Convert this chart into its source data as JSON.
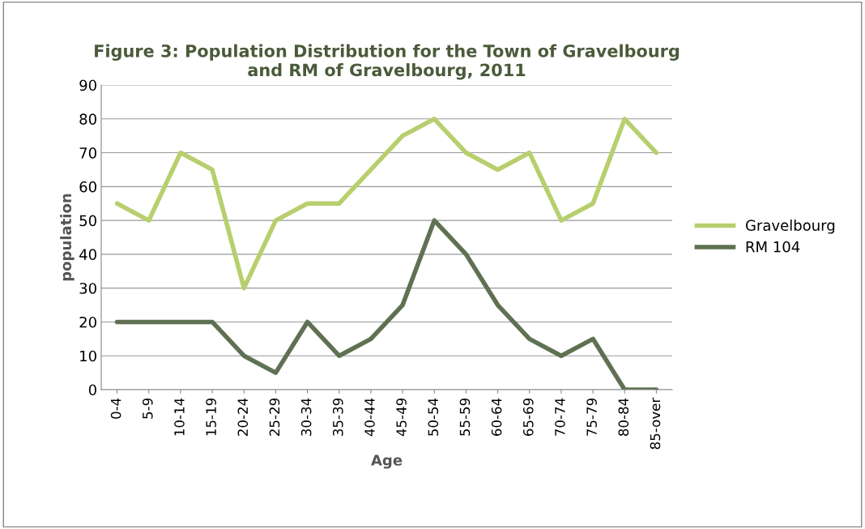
{
  "chart_data": {
    "type": "line",
    "title": "Figure 3: Population Distribution for the Town of Gravelbourg\nand RM of Gravelbourg, 2011",
    "xlabel": "Age",
    "ylabel": "population",
    "categories": [
      "0-4",
      "5-9",
      "10-14",
      "15-19",
      "20-24",
      "25-29",
      "30-34",
      "35-39",
      "40-44",
      "45-49",
      "50-54",
      "55-59",
      "60-64",
      "65-69",
      "70-74",
      "75-79",
      "80-84",
      "85-over"
    ],
    "series": [
      {
        "name": "Gravelbourg",
        "color": "#b8cf6e",
        "values": [
          55,
          50,
          70,
          65,
          30,
          50,
          55,
          55,
          65,
          75,
          80,
          70,
          65,
          70,
          50,
          55,
          80,
          70
        ]
      },
      {
        "name": "RM 104",
        "color": "#5f7152",
        "values": [
          20,
          20,
          20,
          20,
          10,
          5,
          20,
          10,
          15,
          25,
          50,
          40,
          25,
          15,
          10,
          15,
          0,
          0
        ]
      }
    ],
    "ylim": [
      0,
      90
    ],
    "yticks": [
      0,
      10,
      20,
      30,
      40,
      50,
      60,
      70,
      80,
      90
    ],
    "grid": "y",
    "legend": "right",
    "marker": "none",
    "line_style": "solid"
  }
}
